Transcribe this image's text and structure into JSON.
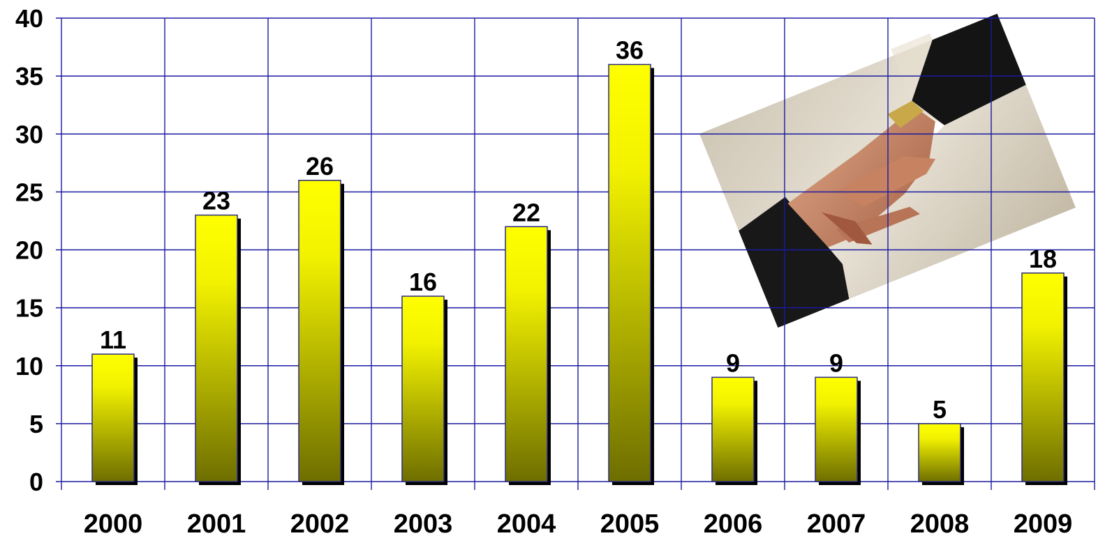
{
  "chart_data": {
    "type": "bar",
    "categories": [
      "2000",
      "2001",
      "2002",
      "2003",
      "2004",
      "2005",
      "2006",
      "2007",
      "2008",
      "2009"
    ],
    "values": [
      11,
      23,
      26,
      16,
      22,
      36,
      9,
      9,
      5,
      18
    ],
    "data_labels": [
      "11",
      "23",
      "26",
      "16",
      "22",
      "36",
      "9",
      "9",
      "5",
      "18"
    ],
    "yticks": [
      "0",
      "5",
      "10",
      "15",
      "20",
      "25",
      "30",
      "35",
      "40"
    ],
    "ylim": [
      0,
      40
    ],
    "grid": true,
    "colors": {
      "grid": "#1a1aa0",
      "bar_top": "#ffff00",
      "bar_bottom": "#6e6e00",
      "bar_border": "#2a2a80",
      "bar_shadow": "#000000"
    }
  },
  "photo": {
    "icon": "handshake-photo"
  }
}
